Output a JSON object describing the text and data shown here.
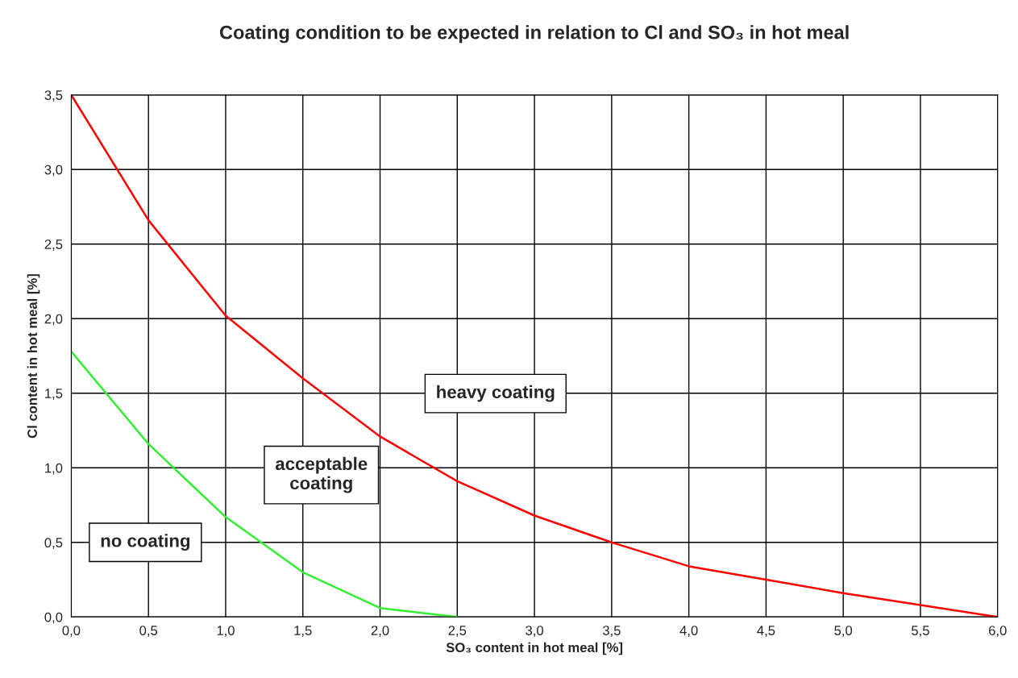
{
  "chart_data": {
    "type": "line",
    "title": "Coating condition to be expected in relation to Cl and SO₃ in hot meal",
    "xlabel": "SO₃ content in hot meal [%]",
    "ylabel": "Cl content in hot meal [%]",
    "series": [
      {
        "color": "#ff0000",
        "x": [
          0,
          0.5,
          1.0,
          1.5,
          2.0,
          2.5,
          3.0,
          3.5,
          4.0,
          4.5,
          5.0,
          5.5,
          6.0
        ],
        "values": [
          3.5,
          2.66,
          2.02,
          1.6,
          1.21,
          0.91,
          0.68,
          0.5,
          0.34,
          0.25,
          0.16,
          0.08,
          0
        ]
      },
      {
        "color": "#33ee33",
        "x": [
          0,
          0.5,
          1.0,
          1.5,
          2.0,
          2.5
        ],
        "values": [
          1.78,
          1.16,
          0.67,
          0.3,
          0.06,
          0
        ]
      }
    ],
    "xlim": [
      0,
      6
    ],
    "ylim": [
      0,
      3.5
    ],
    "xticks": [
      {
        "value": 0,
        "label": "0,0"
      },
      {
        "value": 0.5,
        "label": "0,5"
      },
      {
        "value": 1,
        "label": "1,0"
      },
      {
        "value": 1.5,
        "label": "1,5"
      },
      {
        "value": 2,
        "label": "2,0"
      },
      {
        "value": 2.5,
        "label": "2,5"
      },
      {
        "value": 3,
        "label": "3,0"
      },
      {
        "value": 3.5,
        "label": "3,5"
      },
      {
        "value": 4,
        "label": "4,0"
      },
      {
        "value": 4.5,
        "label": "4,5"
      },
      {
        "value": 5,
        "label": "5,0"
      },
      {
        "value": 5.5,
        "label": "5,5"
      },
      {
        "value": 6,
        "label": "6,0"
      }
    ],
    "yticks": [
      {
        "value": 0,
        "label": "0,0"
      },
      {
        "value": 0.5,
        "label": "0,5"
      },
      {
        "value": 1,
        "label": "1,0"
      },
      {
        "value": 1.5,
        "label": "1,5"
      },
      {
        "value": 2,
        "label": "2,0"
      },
      {
        "value": 2.5,
        "label": "2,5"
      },
      {
        "value": 3,
        "label": "3,0"
      },
      {
        "value": 3.5,
        "label": "3,5"
      }
    ],
    "grid": true,
    "marker": "none",
    "line_style": "solid",
    "annotations": [
      "heavy coating",
      "acceptable\ncoating",
      "no coating"
    ]
  }
}
